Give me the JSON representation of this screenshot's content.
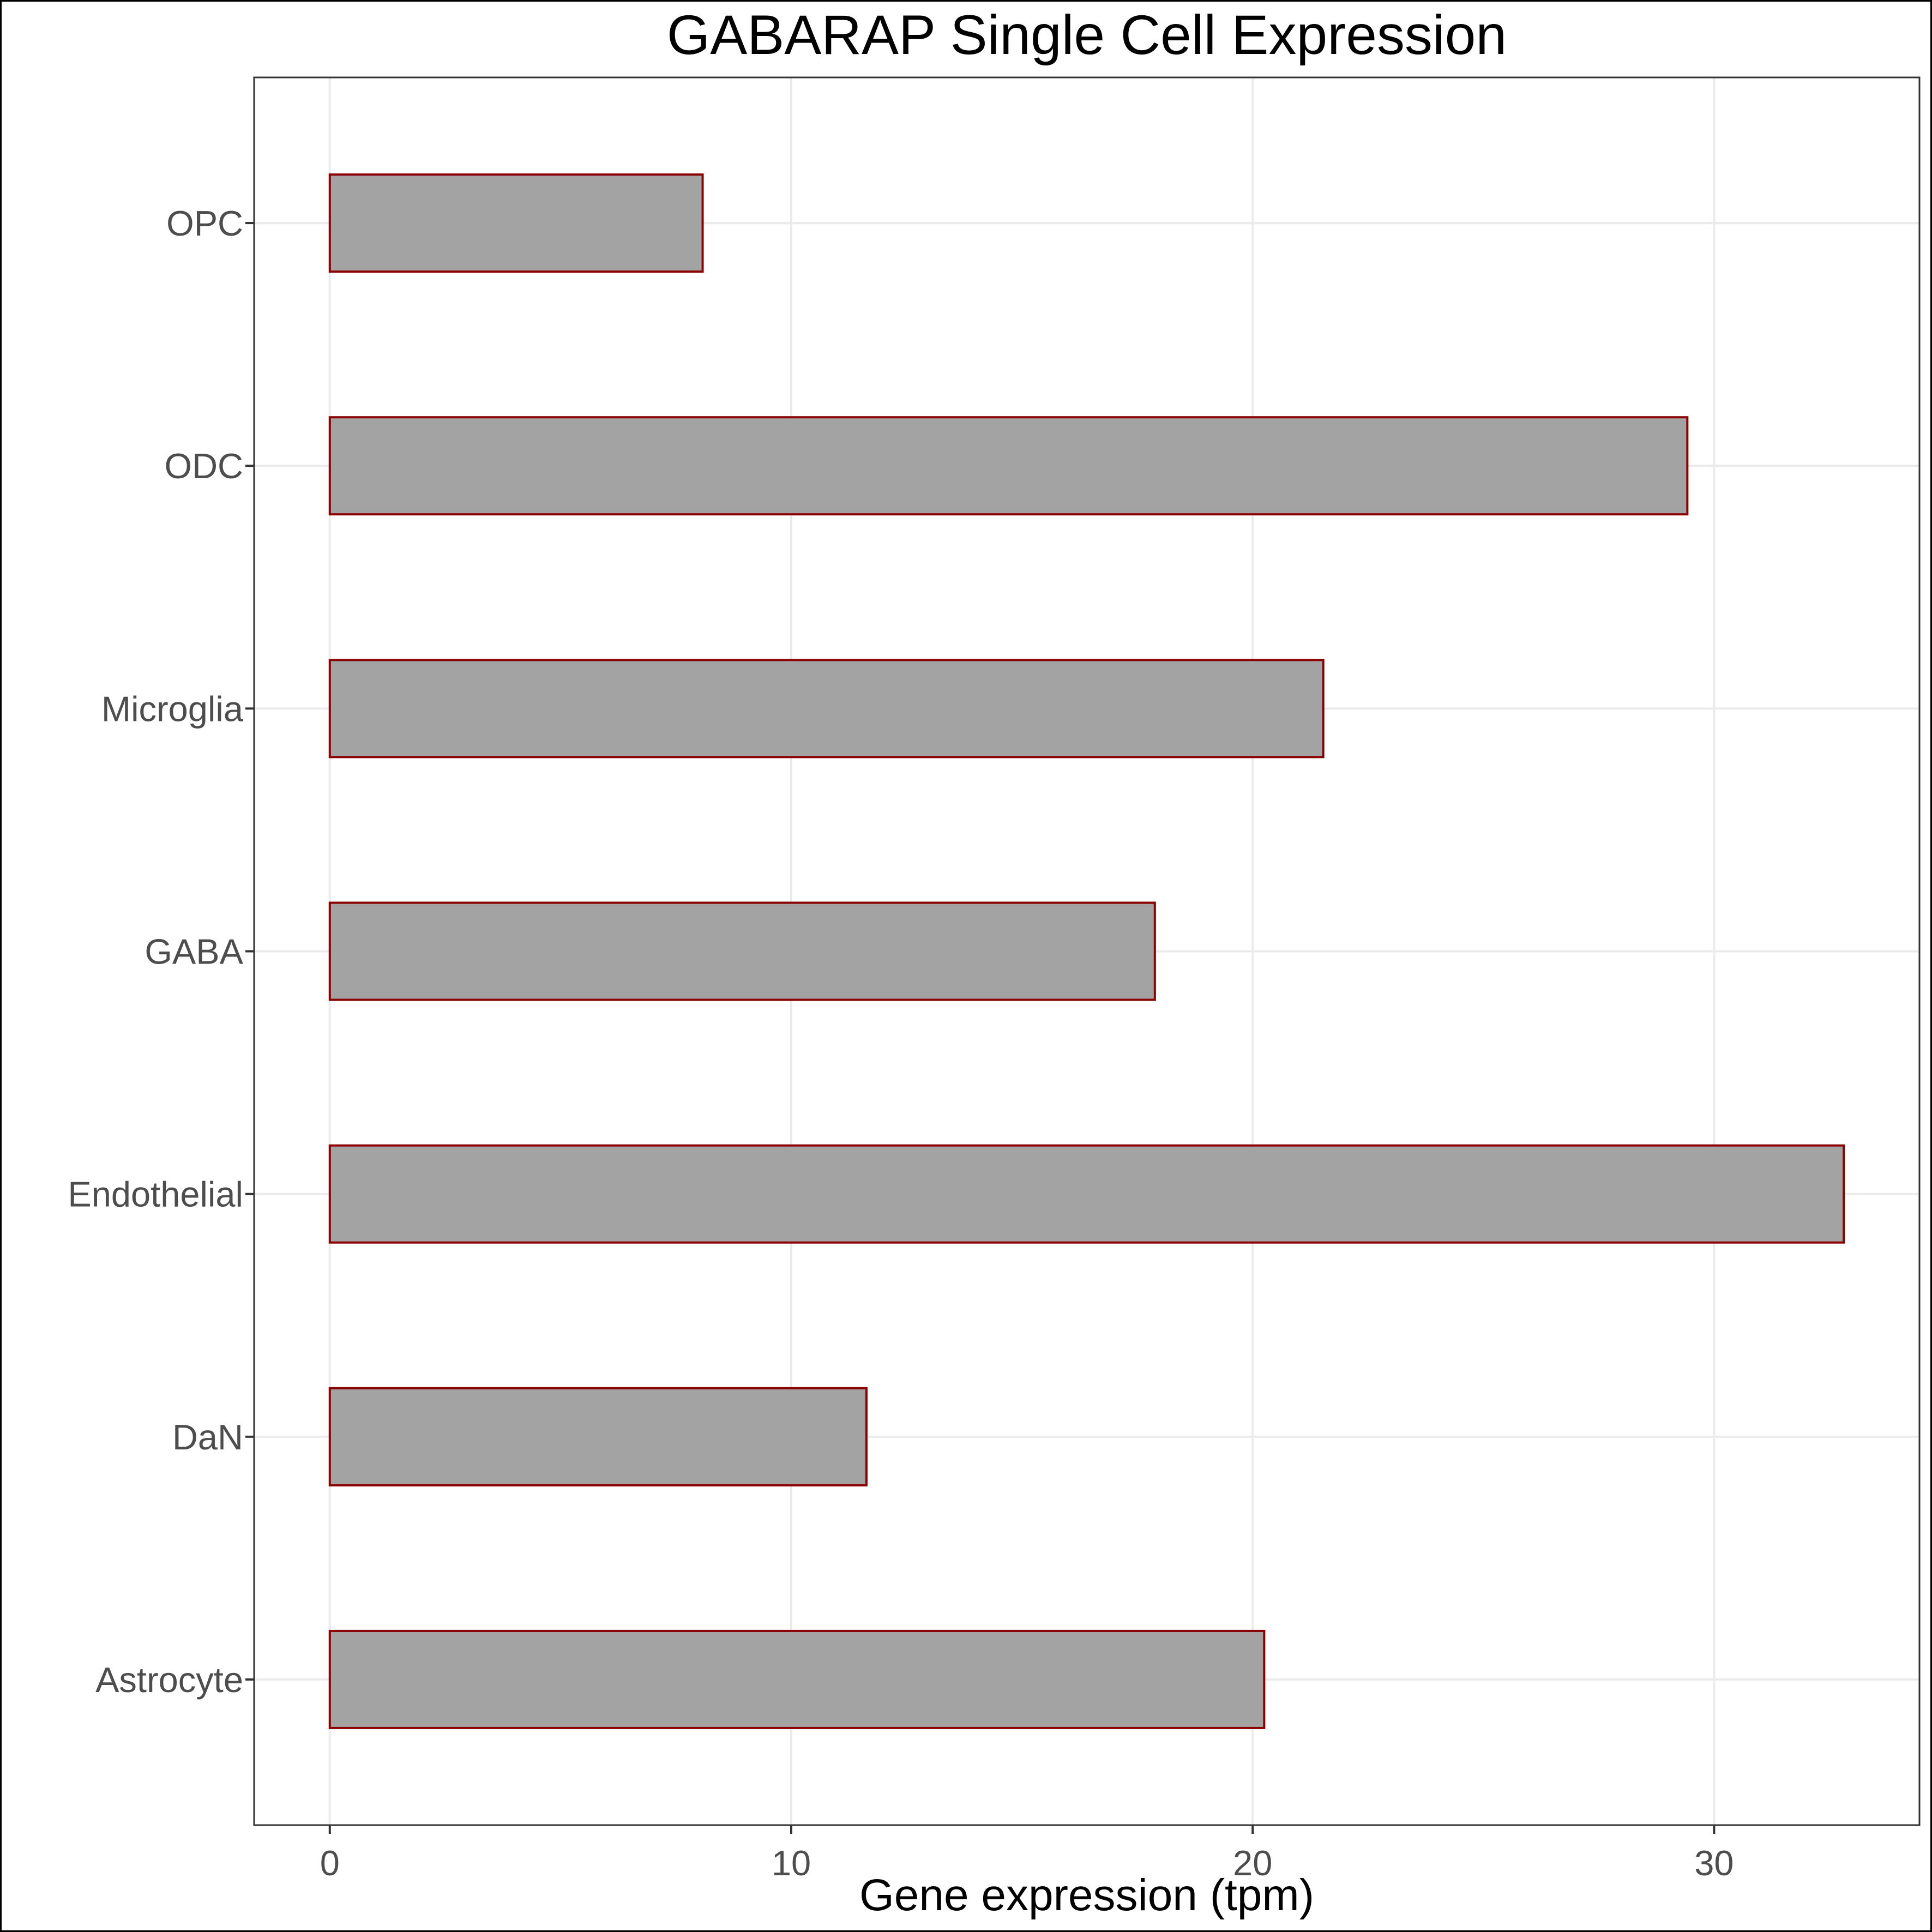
{
  "chart_data": {
    "type": "bar",
    "orientation": "horizontal",
    "title": "GABARAP Single Cell Expression",
    "xlabel": "Gene expression (tpm)",
    "ylabel": "",
    "categories": [
      "Astrocyte",
      "DaN",
      "Endothelial",
      "GABA",
      "Microglia",
      "ODC",
      "OPC"
    ],
    "values": [
      20.25,
      11.63,
      32.81,
      17.88,
      21.53,
      29.42,
      8.08
    ],
    "xlim": [
      -1.64,
      34.45
    ],
    "xticks": [
      0,
      10,
      20,
      30
    ],
    "xtick_labels": [
      "0",
      "10",
      "20",
      "30"
    ],
    "grid": true,
    "legend": "none",
    "colors": {
      "bar_fill": "#a3a3a3",
      "bar_outline": "#8b0000",
      "grid": "#ebebeb",
      "panel_border": "#333333",
      "tick_label": "#4d4d4d"
    }
  }
}
